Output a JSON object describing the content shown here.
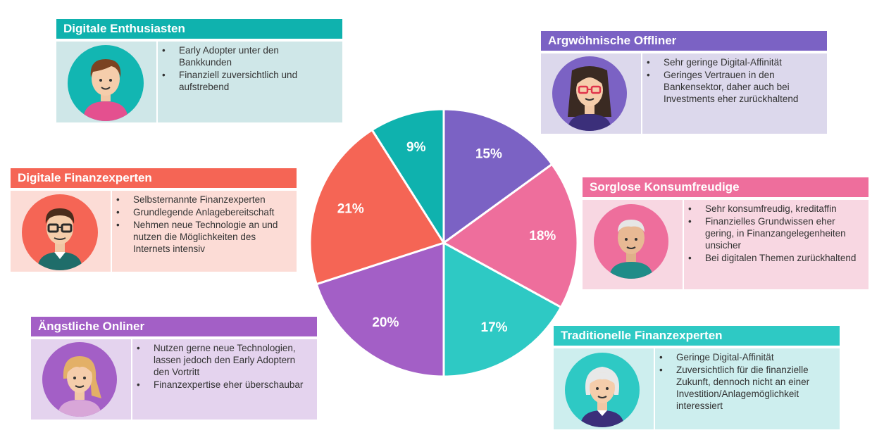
{
  "chart_data": {
    "type": "pie",
    "slices": [
      {
        "key": "argwoehnische",
        "label": "15%",
        "value": 15,
        "color": "#7b62c4"
      },
      {
        "key": "sorglose",
        "label": "18%",
        "value": 18,
        "color": "#ee6e9c"
      },
      {
        "key": "traditionelle",
        "label": "17%",
        "value": 17,
        "color": "#2ec9c4"
      },
      {
        "key": "aengstliche",
        "label": "20%",
        "value": 20,
        "color": "#a35fc6"
      },
      {
        "key": "digitale_finanz",
        "label": "21%",
        "value": 21,
        "color": "#f56555"
      },
      {
        "key": "digitale_enth",
        "label": "9%",
        "value": 9,
        "color": "#0fb2ae"
      }
    ]
  },
  "segments": {
    "digitale_enth": {
      "title": "Digitale Enthusiasten",
      "header_color": "#0fb2ae",
      "body_color": "#cfe7e8",
      "bullets": [
        "Early Adopter unter den Bankkunden",
        "Finanziell zuversichtlich und aufstrebend"
      ]
    },
    "argwoehnische": {
      "title": "Argwöhnische Offliner",
      "header_color": "#7b62c4",
      "body_color": "#dcd8ec",
      "bullets": [
        "Sehr geringe Digital-Affinität",
        "Geringes Vertrauen in den Bankensektor, daher auch bei Investments eher zurückhaltend"
      ]
    },
    "digitale_finanz": {
      "title": "Digitale Finanzexperten",
      "header_color": "#f56555",
      "body_color": "#fcdcd6",
      "bullets": [
        "Selbsternannte Finanzexperten",
        "Grundlegende Anlagebereitschaft",
        "Nehmen neue Technologie an und nutzen die Möglichkeiten des Internets intensiv"
      ]
    },
    "sorglose": {
      "title": "Sorglose Konsumfreudige",
      "header_color": "#ee6e9c",
      "body_color": "#f8d7e2",
      "bullets": [
        "Sehr konsumfreudig, kreditaffin",
        "Finanzielles Grundwissen eher gering, in Finanzangelegenheiten unsicher",
        "Bei digitalen Themen zurückhaltend"
      ]
    },
    "aengstliche": {
      "title": "Ängstliche Onliner",
      "header_color": "#a35fc6",
      "body_color": "#e4d3ee",
      "bullets": [
        "Nutzen gerne neue Technologien, lassen jedoch den Early Adoptern den Vortritt",
        "Finanzexpertise eher überschaubar"
      ]
    },
    "traditionelle": {
      "title": "Traditionelle Finanzexperten",
      "header_color": "#2ec9c4",
      "body_color": "#cdeeee",
      "bullets": [
        "Geringe Digital-Affinität",
        "Zuversichtlich für die finanzielle Zukunft, dennoch nicht an einer Investition/Anlagemöglichkeit interessiert"
      ]
    }
  }
}
